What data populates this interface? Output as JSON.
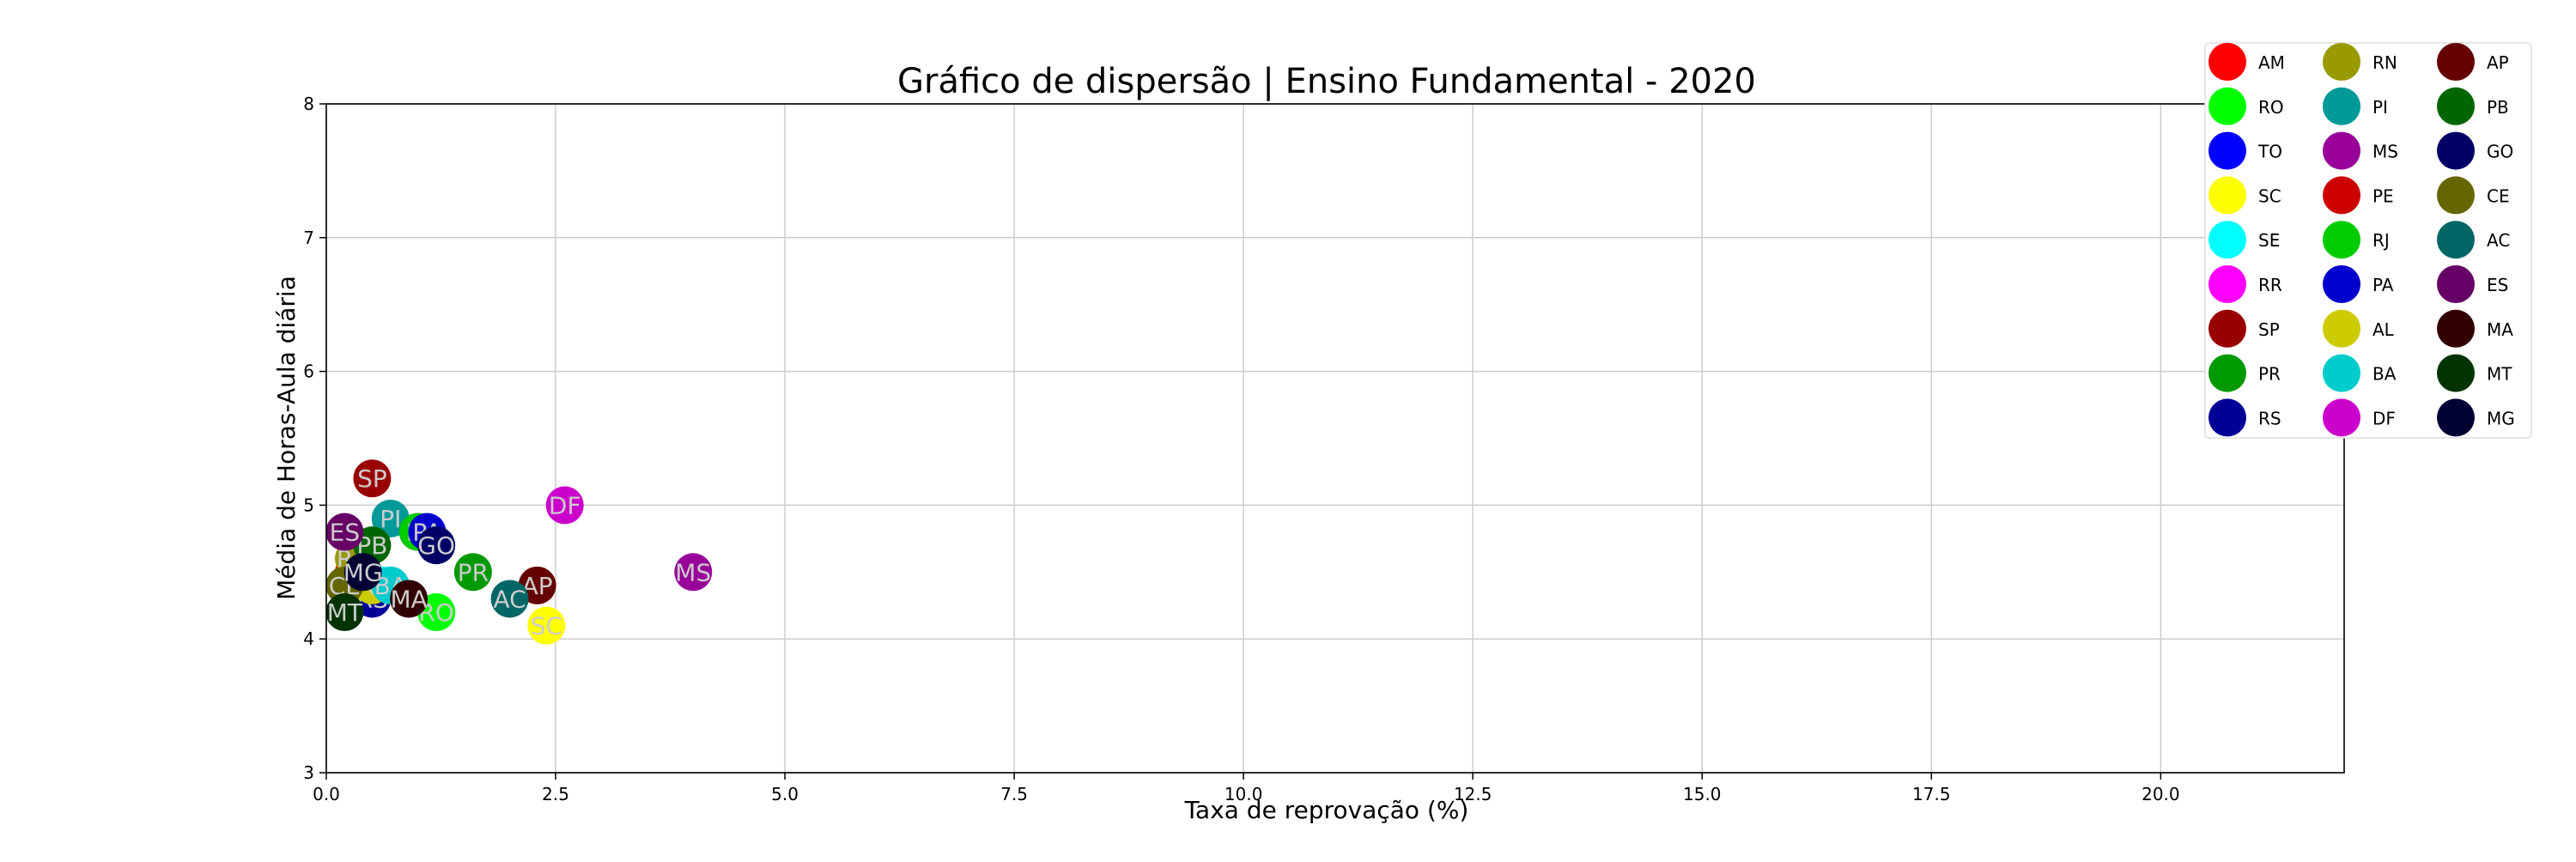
{
  "chart_data": {
    "type": "scatter",
    "title": "Gráfico de dispersão | Ensino Fundamental - 2020",
    "xlabel": "Taxa de reprovação (%)",
    "ylabel": "Média de Horas-Aula diária",
    "xlim": [
      0,
      22
    ],
    "ylim": [
      3,
      8
    ],
    "xticks": [
      0.0,
      2.5,
      5.0,
      7.5,
      10.0,
      12.5,
      15.0,
      17.5,
      20.0
    ],
    "xtick_labels": [
      "0.0",
      "2.5",
      "5.0",
      "7.5",
      "10.0",
      "12.5",
      "15.0",
      "17.5",
      "20.0"
    ],
    "yticks": [
      3,
      4,
      5,
      6,
      7,
      8
    ],
    "ytick_labels": [
      "3",
      "4",
      "5",
      "6",
      "7",
      "8"
    ],
    "grid": true,
    "legend_position": "top-right",
    "legend_columns": 3,
    "series": [
      {
        "name": "AM",
        "color": "#ff0000",
        "x": 0.3,
        "y": 4.5
      },
      {
        "name": "RO",
        "color": "#00ff00",
        "x": 1.2,
        "y": 4.2
      },
      {
        "name": "TO",
        "color": "#0000ff",
        "x": 0.4,
        "y": 4.4
      },
      {
        "name": "SC",
        "color": "#ffff00",
        "x": 2.4,
        "y": 4.1
      },
      {
        "name": "SE",
        "color": "#00ffff",
        "x": 0.6,
        "y": 4.4
      },
      {
        "name": "RR",
        "color": "#ff00ff",
        "x": 0.4,
        "y": 4.4
      },
      {
        "name": "SP",
        "color": "#990000",
        "x": 0.5,
        "y": 5.2
      },
      {
        "name": "PR",
        "color": "#009900",
        "x": 1.6,
        "y": 4.5
      },
      {
        "name": "RS",
        "color": "#000099",
        "x": 0.5,
        "y": 4.3
      },
      {
        "name": "RN",
        "color": "#999900",
        "x": 0.3,
        "y": 4.6
      },
      {
        "name": "PI",
        "color": "#009999",
        "x": 0.7,
        "y": 4.9
      },
      {
        "name": "MS",
        "color": "#990099",
        "x": 4.0,
        "y": 4.5
      },
      {
        "name": "PE",
        "color": "#cc0000",
        "x": 1.0,
        "y": 4.8
      },
      {
        "name": "RJ",
        "color": "#00cc00",
        "x": 1.0,
        "y": 4.8
      },
      {
        "name": "PA",
        "color": "#0000cc",
        "x": 1.1,
        "y": 4.8
      },
      {
        "name": "AL",
        "color": "#cccc00",
        "x": 0.5,
        "y": 4.4
      },
      {
        "name": "BA",
        "color": "#00cccc",
        "x": 0.7,
        "y": 4.4
      },
      {
        "name": "DF",
        "color": "#cc00cc",
        "x": 2.6,
        "y": 5.0
      },
      {
        "name": "AP",
        "color": "#660000",
        "x": 2.3,
        "y": 4.4
      },
      {
        "name": "PB",
        "color": "#006600",
        "x": 0.5,
        "y": 4.7
      },
      {
        "name": "GO",
        "color": "#000066",
        "x": 1.2,
        "y": 4.7
      },
      {
        "name": "CE",
        "color": "#666600",
        "x": 0.2,
        "y": 4.4
      },
      {
        "name": "AC",
        "color": "#006666",
        "x": 2.0,
        "y": 4.3
      },
      {
        "name": "ES",
        "color": "#660066",
        "x": 0.2,
        "y": 4.8
      },
      {
        "name": "MA",
        "color": "#330000",
        "x": 0.9,
        "y": 4.3
      },
      {
        "name": "MT",
        "color": "#003300",
        "x": 0.2,
        "y": 4.2
      },
      {
        "name": "MG",
        "color": "#000033",
        "x": 0.4,
        "y": 4.5
      }
    ]
  }
}
